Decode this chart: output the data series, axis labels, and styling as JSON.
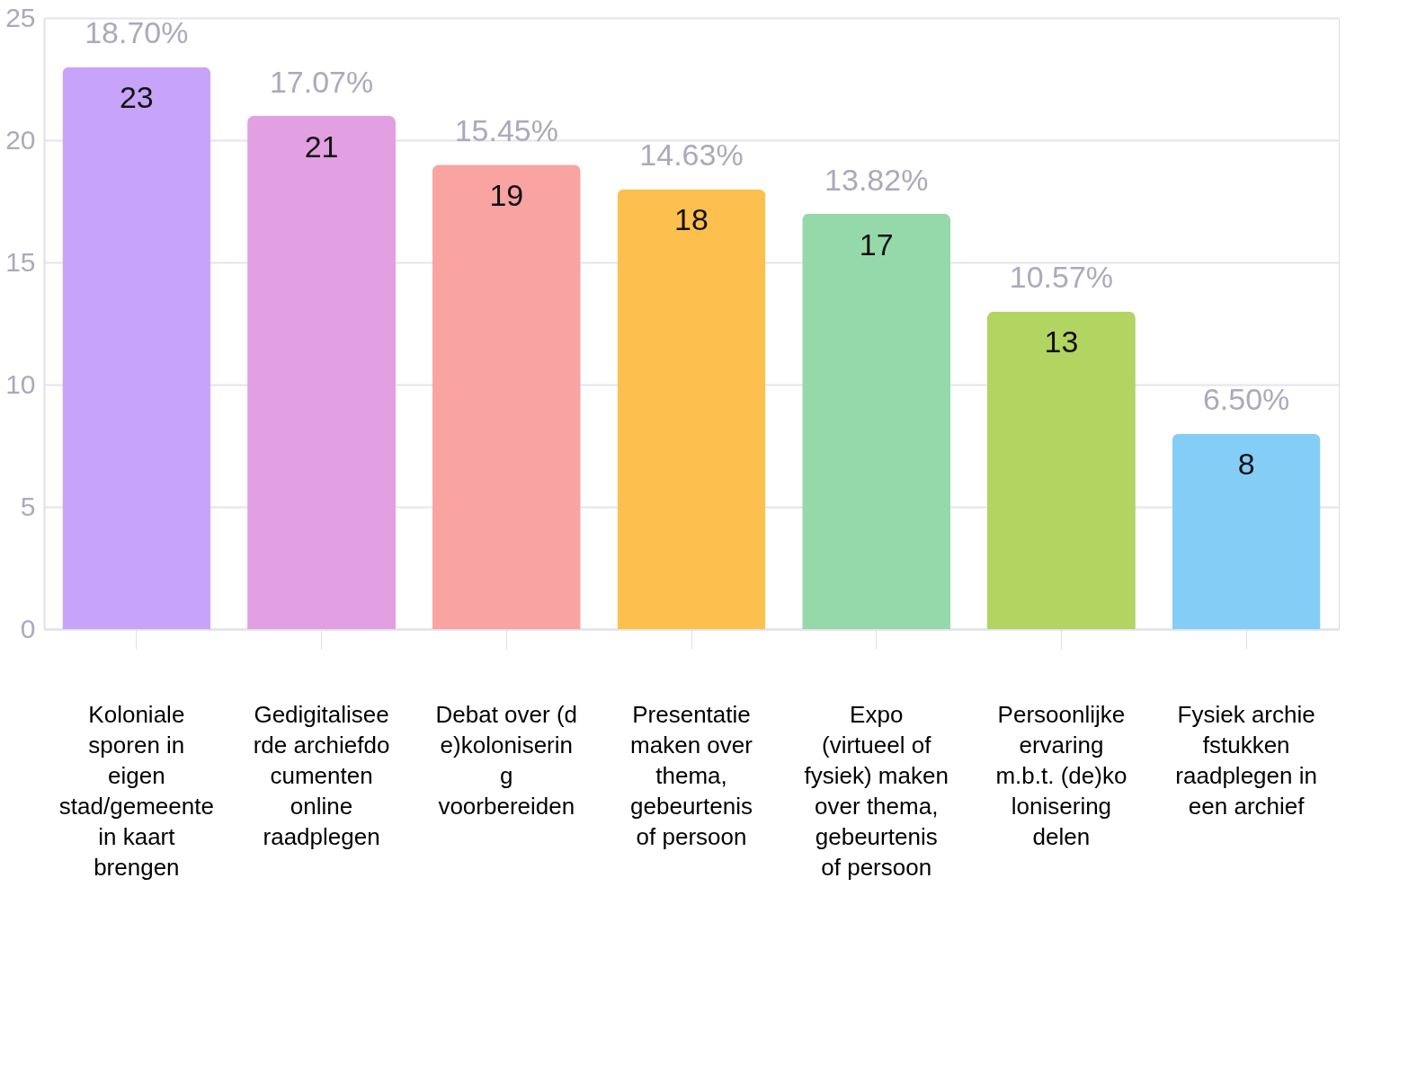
{
  "chart_data": {
    "type": "bar",
    "categories": [
      "Koloniale sporen in eigen stad/gemeente in kaart brengen",
      "Gedigitaliseerde archiefdocumenten online raadplegen",
      "Debat over (de)kolonisering voorbereiden",
      "Presentatie maken over thema, gebeurtenis of persoon",
      "Expo (virtueel of fysiek) maken over thema, gebeurtenis of persoon",
      "Persoonlijke ervaring m.b.t. (de)kolonisering delen",
      "Fysiek archiefstukken raadplegen in een archief"
    ],
    "values": [
      23,
      21,
      19,
      18,
      17,
      13,
      8
    ],
    "colors": [
      "#c7a4fa",
      "#e2a0e2",
      "#f9a3a3",
      "#fdc04f",
      "#95d9aa",
      "#b2d461",
      "#84cdf7"
    ],
    "annotations": [
      {
        "text": "18.70%",
        "x": "Koloniale sporen in eigen stad/gemeente in kaart brengen",
        "y": 23
      },
      {
        "text": "17.07%",
        "x": "Gedigitaliseerde archiefdocumenten online raadplegen",
        "y": 21
      },
      {
        "text": "15.45%",
        "x": "Debat over (de)kolonisering voorbereiden",
        "y": 19
      },
      {
        "text": "14.63%",
        "x": "Presentatie maken over thema, gebeurtenis of persoon",
        "y": 18
      },
      {
        "text": "13.82%",
        "x": "Expo (virtueel of fysiek) maken over thema, gebeurtenis of persoon",
        "y": 17
      },
      {
        "text": "10.57%",
        "x": "Persoonlijke ervaring m.b.t. (de)kolonisering delen",
        "y": 13
      },
      {
        "text": "6.50%",
        "x": "Fysiek archiefstukken raadplegen in een archief",
        "y": 8
      }
    ],
    "data_labels": true,
    "ylim": [
      0,
      25
    ],
    "yticks": [
      0,
      5,
      10,
      15,
      20,
      25
    ],
    "grid": "y"
  }
}
